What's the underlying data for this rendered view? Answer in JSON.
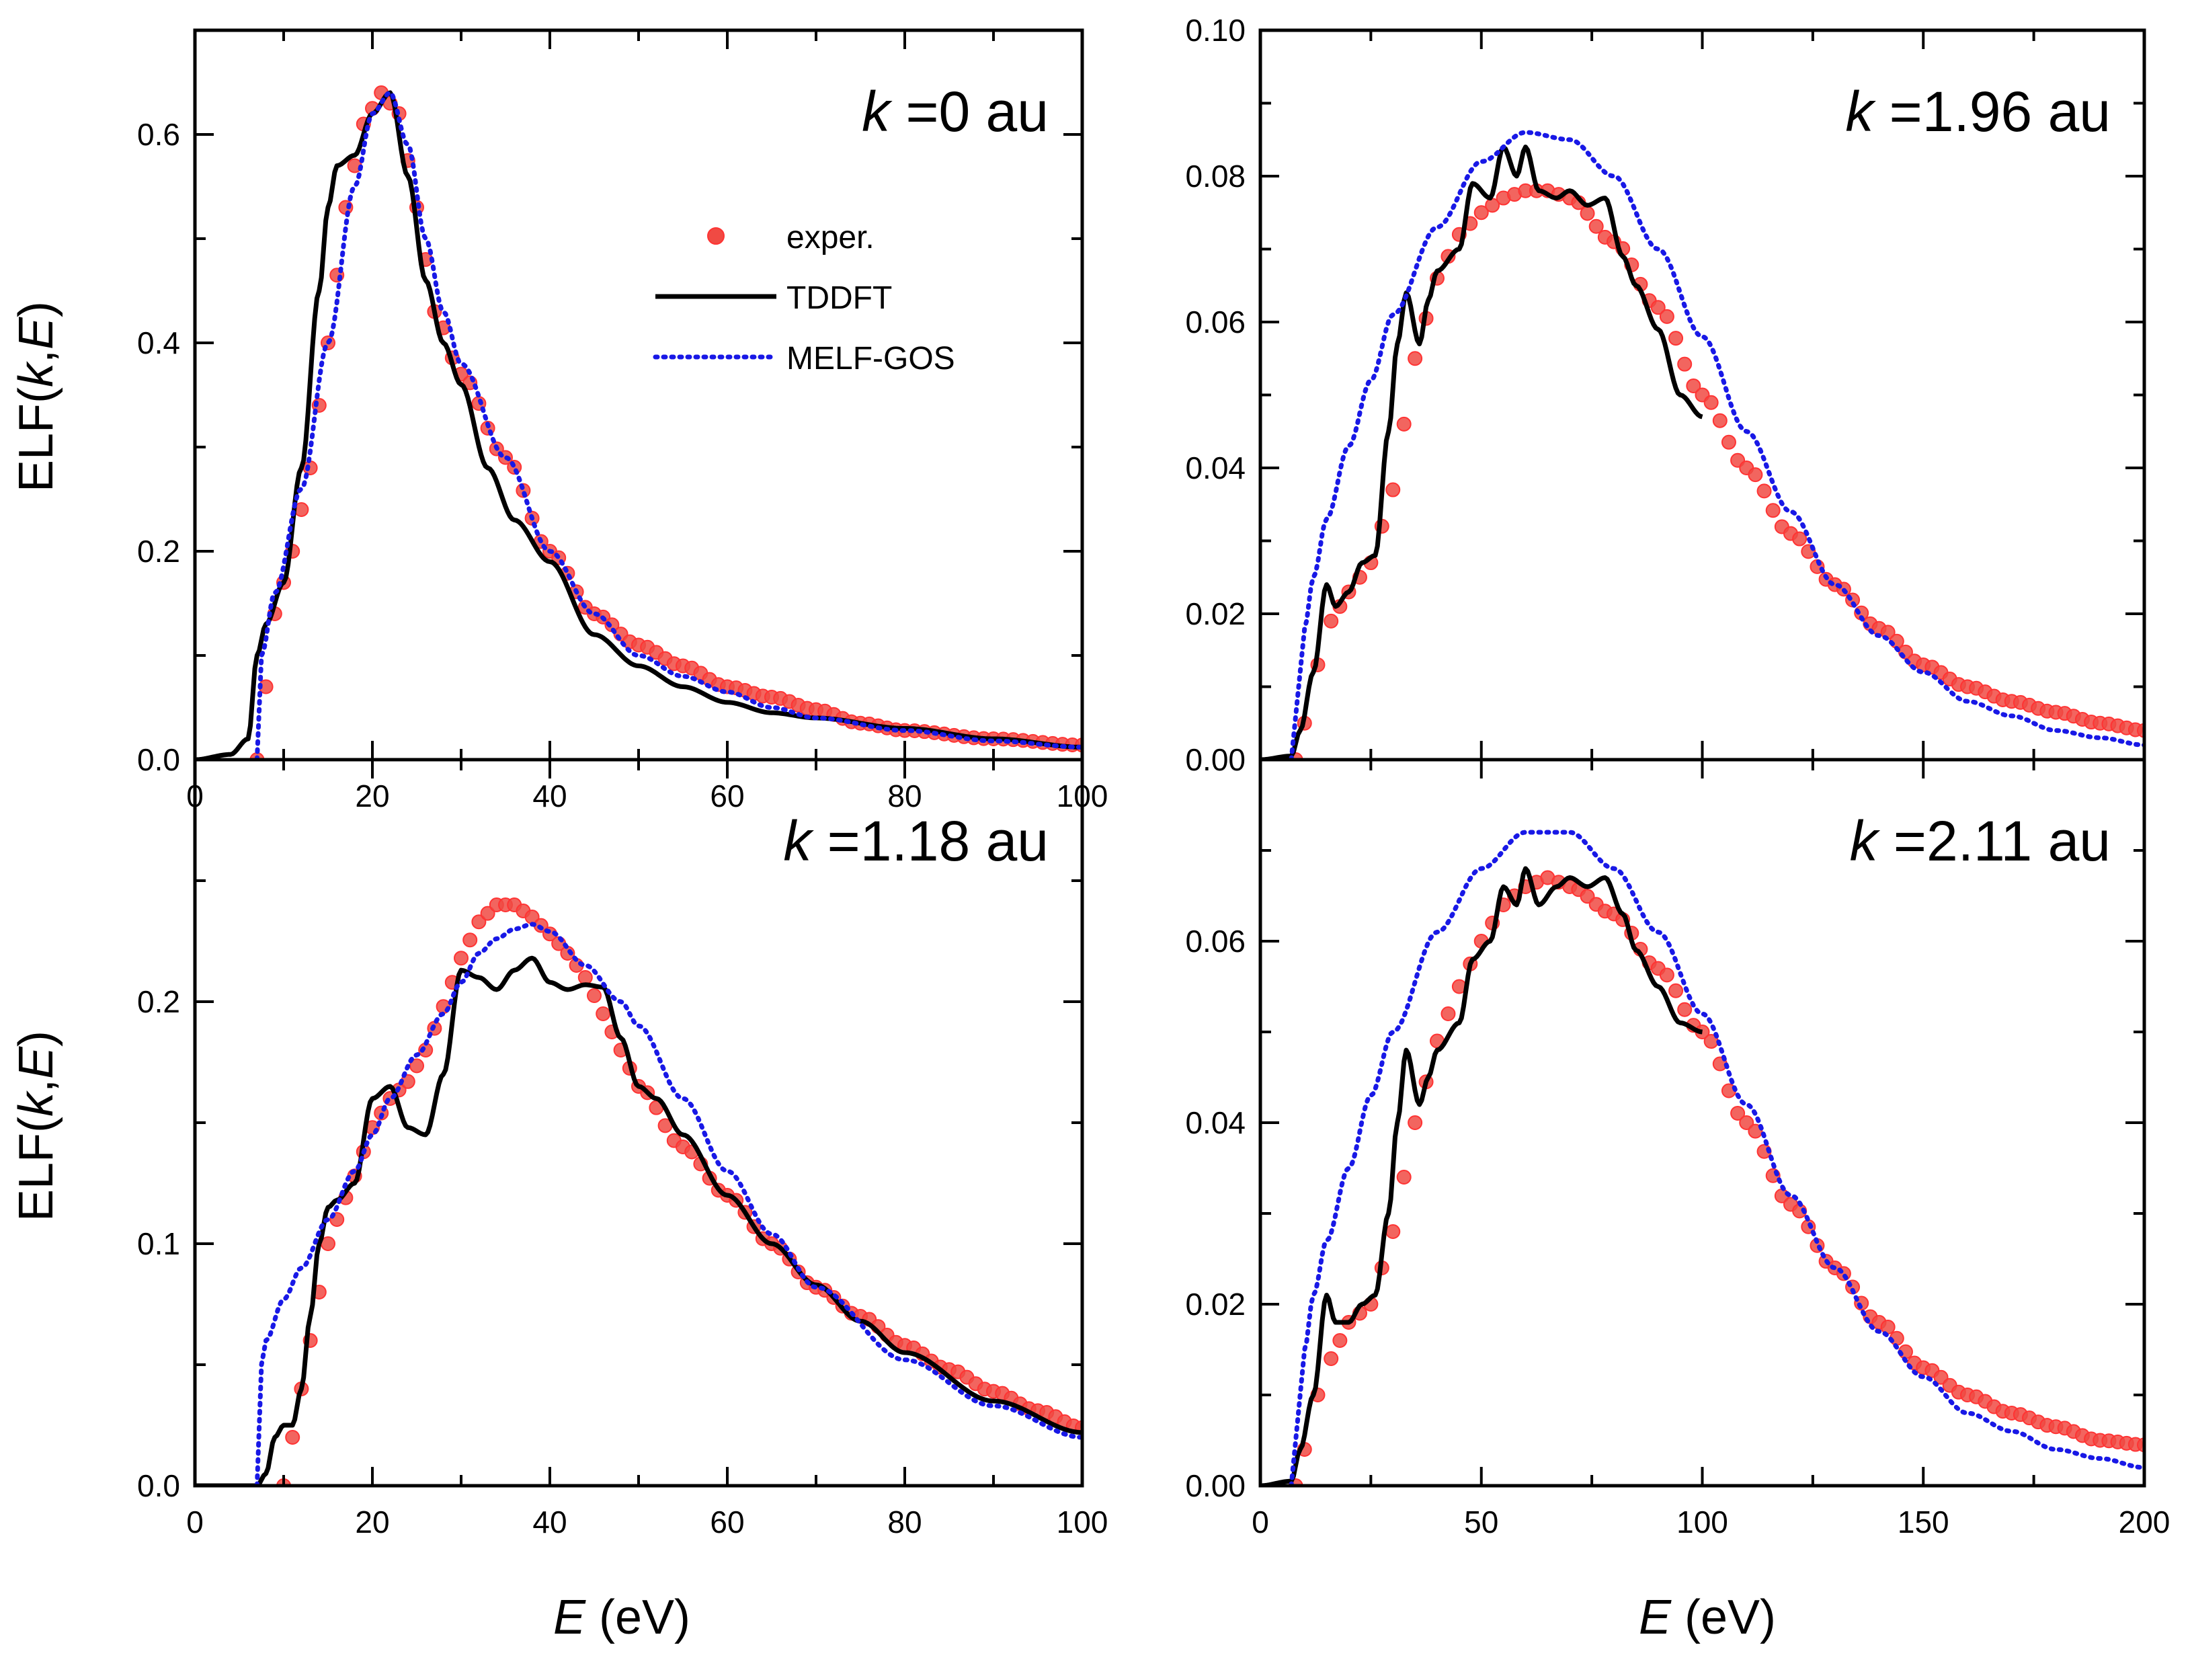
{
  "colors": {
    "exper": "#f04a43",
    "exper_edge": "#ff3333",
    "tddft": "#000000",
    "melf": "#1818e6"
  },
  "legend": [
    {
      "key": "exper",
      "label": "exper."
    },
    {
      "key": "tddft",
      "label": "TDDFT"
    },
    {
      "key": "melf",
      "label": "MELF-GOS"
    }
  ],
  "axes": {
    "ylabel_prefix": "ELF(",
    "ylabel_k": "k",
    "ylabel_sep": ",",
    "ylabel_E": "E",
    "ylabel_suffix": ")",
    "xlabel_E": "E",
    "xlabel_unit": " (eV)"
  },
  "chart_data": [
    {
      "type": "line",
      "panel": "top-left",
      "label_k": "k",
      "label_value": " =0 au",
      "xlim": [
        0,
        100
      ],
      "ylim": [
        0,
        0.7
      ],
      "xticks": [
        "0",
        "20",
        "40",
        "60",
        "80",
        "100"
      ],
      "yticks": [
        "0.0",
        "0.2",
        "0.4",
        "0.6"
      ],
      "show_legend": true,
      "series": [
        {
          "name": "exper.",
          "style": "markers",
          "x": [
            7,
            9,
            11,
            13,
            15,
            17,
            19,
            21,
            23,
            25,
            27,
            30,
            35,
            40,
            45,
            50,
            55,
            60,
            65,
            70,
            75,
            80,
            90,
            100
          ],
          "y": [
            0.0,
            0.14,
            0.2,
            0.28,
            0.4,
            0.53,
            0.61,
            0.64,
            0.62,
            0.53,
            0.43,
            0.37,
            0.29,
            0.2,
            0.14,
            0.11,
            0.09,
            0.07,
            0.06,
            0.048,
            0.035,
            0.028,
            0.02,
            0.014
          ]
        },
        {
          "name": "TDDFT",
          "style": "solid",
          "x": [
            0,
            4,
            6,
            7,
            8,
            10,
            12,
            14,
            15,
            16,
            18,
            20,
            22,
            24,
            26,
            28,
            30,
            33,
            36,
            40,
            45,
            50,
            55,
            60,
            65,
            70,
            80,
            90,
            100
          ],
          "y": [
            0.0,
            0.005,
            0.02,
            0.1,
            0.13,
            0.17,
            0.28,
            0.45,
            0.53,
            0.57,
            0.58,
            0.62,
            0.64,
            0.56,
            0.46,
            0.4,
            0.36,
            0.28,
            0.23,
            0.19,
            0.12,
            0.09,
            0.07,
            0.055,
            0.045,
            0.04,
            0.03,
            0.02,
            0.012
          ]
        },
        {
          "name": "MELF-GOS",
          "style": "dotted",
          "x": [
            7,
            7.5,
            9,
            12,
            15,
            18,
            20,
            22,
            24,
            26,
            28,
            30,
            35,
            40,
            45,
            50,
            55,
            60,
            65,
            70,
            80,
            90,
            100
          ],
          "y": [
            0.0,
            0.1,
            0.16,
            0.26,
            0.4,
            0.55,
            0.62,
            0.64,
            0.59,
            0.5,
            0.43,
            0.38,
            0.29,
            0.2,
            0.14,
            0.1,
            0.08,
            0.065,
            0.05,
            0.04,
            0.028,
            0.018,
            0.012
          ]
        }
      ]
    },
    {
      "type": "line",
      "panel": "top-right",
      "label_k": "k",
      "label_value": " =1.96 au",
      "xlim": [
        0,
        200
      ],
      "ylim": [
        0,
        0.1
      ],
      "xticks": [],
      "yticks": [
        "0.00",
        "0.02",
        "0.04",
        "0.06",
        "0.08",
        "0.10"
      ],
      "show_legend": false,
      "series": [
        {
          "name": "exper.",
          "style": "markers",
          "x": [
            8,
            10,
            13,
            16,
            20,
            25,
            30,
            35,
            40,
            45,
            50,
            55,
            60,
            65,
            70,
            80,
            90,
            100,
            110,
            120,
            130,
            140,
            150,
            160,
            170,
            180,
            190,
            200
          ],
          "y": [
            0.0,
            0.005,
            0.013,
            0.019,
            0.023,
            0.027,
            0.037,
            0.055,
            0.066,
            0.072,
            0.075,
            0.077,
            0.078,
            0.078,
            0.077,
            0.071,
            0.062,
            0.05,
            0.04,
            0.031,
            0.024,
            0.018,
            0.013,
            0.01,
            0.008,
            0.0065,
            0.005,
            0.004
          ]
        },
        {
          "name": "TDDFT",
          "style": "solid",
          "x": [
            0,
            7,
            9,
            12,
            15,
            17,
            20,
            23,
            26,
            29,
            31,
            33,
            36,
            38,
            40,
            45,
            48,
            52,
            55,
            58,
            60,
            63,
            67,
            70,
            74,
            78,
            82,
            85,
            90,
            95,
            100
          ],
          "y": [
            0.0,
            0.0005,
            0.004,
            0.012,
            0.024,
            0.021,
            0.023,
            0.027,
            0.028,
            0.045,
            0.057,
            0.064,
            0.057,
            0.063,
            0.067,
            0.07,
            0.079,
            0.077,
            0.084,
            0.08,
            0.084,
            0.078,
            0.077,
            0.078,
            0.076,
            0.077,
            0.069,
            0.065,
            0.059,
            0.05,
            0.047
          ]
        },
        {
          "name": "MELF-GOS",
          "style": "dotted",
          "x": [
            7,
            8,
            9,
            10,
            12,
            15,
            20,
            25,
            30,
            40,
            50,
            60,
            70,
            80,
            90,
            100,
            110,
            120,
            130,
            140,
            150,
            160,
            170,
            180,
            190,
            200
          ],
          "y": [
            0.0,
            0.006,
            0.012,
            0.018,
            0.025,
            0.033,
            0.043,
            0.052,
            0.061,
            0.073,
            0.082,
            0.086,
            0.085,
            0.08,
            0.07,
            0.058,
            0.045,
            0.034,
            0.024,
            0.017,
            0.012,
            0.008,
            0.006,
            0.004,
            0.003,
            0.002
          ]
        }
      ]
    },
    {
      "type": "line",
      "panel": "bottom-left",
      "label_k": "k",
      "label_value": " =1.18 au",
      "xlim": [
        0,
        100
      ],
      "ylim": [
        0,
        0.3
      ],
      "xticks": [
        "0",
        "20",
        "40",
        "60",
        "80",
        "100"
      ],
      "yticks": [
        "0.0",
        "0.1",
        "0.2"
      ],
      "show_legend": false,
      "series": [
        {
          "name": "exper.",
          "style": "markers",
          "x": [
            10,
            11,
            12,
            13,
            14,
            15,
            16,
            18,
            20,
            22,
            24,
            26,
            28,
            30,
            32,
            34,
            36,
            38,
            40,
            42,
            44,
            46,
            48,
            50,
            55,
            60,
            65,
            70,
            75,
            80,
            85,
            90,
            95,
            100
          ],
          "y": [
            0.0,
            0.02,
            0.04,
            0.06,
            0.08,
            0.1,
            0.11,
            0.128,
            0.148,
            0.16,
            0.167,
            0.18,
            0.198,
            0.218,
            0.233,
            0.24,
            0.24,
            0.235,
            0.228,
            0.22,
            0.21,
            0.195,
            0.18,
            0.165,
            0.14,
            0.12,
            0.1,
            0.082,
            0.07,
            0.058,
            0.048,
            0.039,
            0.031,
            0.024
          ]
        },
        {
          "name": "TDDFT",
          "style": "solid",
          "x": [
            0,
            7,
            8,
            9,
            10,
            11,
            12,
            13,
            14,
            15,
            16,
            18,
            20,
            22,
            24,
            26,
            28,
            30,
            32,
            34,
            36,
            38,
            40,
            42,
            44,
            46,
            48,
            50,
            52,
            55,
            60,
            65,
            70,
            75,
            80,
            90,
            100
          ],
          "y": [
            0.0,
            0.0,
            0.005,
            0.02,
            0.025,
            0.025,
            0.04,
            0.07,
            0.1,
            0.115,
            0.118,
            0.125,
            0.16,
            0.165,
            0.148,
            0.145,
            0.17,
            0.213,
            0.21,
            0.205,
            0.213,
            0.218,
            0.208,
            0.205,
            0.207,
            0.206,
            0.185,
            0.165,
            0.16,
            0.145,
            0.12,
            0.1,
            0.083,
            0.068,
            0.055,
            0.035,
            0.022
          ]
        },
        {
          "name": "MELF-GOS",
          "style": "dotted",
          "x": [
            7,
            7.5,
            8,
            10,
            12,
            15,
            18,
            20,
            22,
            25,
            28,
            30,
            32,
            34,
            36,
            38,
            40,
            44,
            48,
            50,
            55,
            60,
            65,
            70,
            80,
            90,
            100
          ],
          "y": [
            0.0,
            0.05,
            0.06,
            0.077,
            0.09,
            0.11,
            0.13,
            0.145,
            0.16,
            0.178,
            0.195,
            0.208,
            0.22,
            0.226,
            0.23,
            0.232,
            0.229,
            0.215,
            0.2,
            0.19,
            0.16,
            0.13,
            0.104,
            0.082,
            0.052,
            0.033,
            0.02
          ]
        }
      ]
    },
    {
      "type": "line",
      "panel": "bottom-right",
      "label_k": "k",
      "label_value": " =2.11 au",
      "xlim": [
        0,
        200
      ],
      "ylim": [
        0,
        0.08
      ],
      "xticks": [
        "0",
        "50",
        "100",
        "150",
        "200"
      ],
      "yticks": [
        "0.00",
        "0.02",
        "0.04",
        "0.06"
      ],
      "show_legend": false,
      "series": [
        {
          "name": "exper.",
          "style": "markers",
          "x": [
            8,
            10,
            13,
            16,
            20,
            25,
            30,
            35,
            40,
            45,
            50,
            55,
            60,
            65,
            70,
            80,
            90,
            100,
            110,
            120,
            130,
            140,
            150,
            160,
            170,
            180,
            190,
            200
          ],
          "y": [
            0.0,
            0.004,
            0.01,
            0.014,
            0.018,
            0.02,
            0.028,
            0.04,
            0.049,
            0.055,
            0.06,
            0.064,
            0.066,
            0.067,
            0.066,
            0.063,
            0.057,
            0.05,
            0.04,
            0.031,
            0.024,
            0.018,
            0.013,
            0.01,
            0.008,
            0.0065,
            0.005,
            0.0045
          ]
        },
        {
          "name": "TDDFT",
          "style": "solid",
          "x": [
            0,
            7,
            9,
            12,
            15,
            17,
            20,
            23,
            26,
            29,
            31,
            33,
            36,
            38,
            40,
            45,
            48,
            52,
            55,
            58,
            60,
            63,
            67,
            70,
            74,
            78,
            82,
            85,
            90,
            95,
            100
          ],
          "y": [
            0.0,
            0.0005,
            0.004,
            0.01,
            0.021,
            0.018,
            0.018,
            0.02,
            0.021,
            0.03,
            0.04,
            0.048,
            0.042,
            0.045,
            0.048,
            0.051,
            0.058,
            0.06,
            0.066,
            0.064,
            0.068,
            0.064,
            0.066,
            0.067,
            0.066,
            0.067,
            0.063,
            0.059,
            0.055,
            0.051,
            0.05
          ]
        },
        {
          "name": "MELF-GOS",
          "style": "dotted",
          "x": [
            7,
            8,
            9,
            10,
            12,
            15,
            20,
            25,
            30,
            40,
            50,
            60,
            70,
            80,
            90,
            100,
            110,
            120,
            130,
            140,
            150,
            160,
            170,
            180,
            190,
            200
          ],
          "y": [
            0.0,
            0.005,
            0.01,
            0.015,
            0.021,
            0.027,
            0.035,
            0.043,
            0.05,
            0.061,
            0.068,
            0.072,
            0.072,
            0.068,
            0.061,
            0.052,
            0.042,
            0.032,
            0.024,
            0.017,
            0.012,
            0.008,
            0.006,
            0.004,
            0.003,
            0.002
          ]
        }
      ]
    }
  ]
}
